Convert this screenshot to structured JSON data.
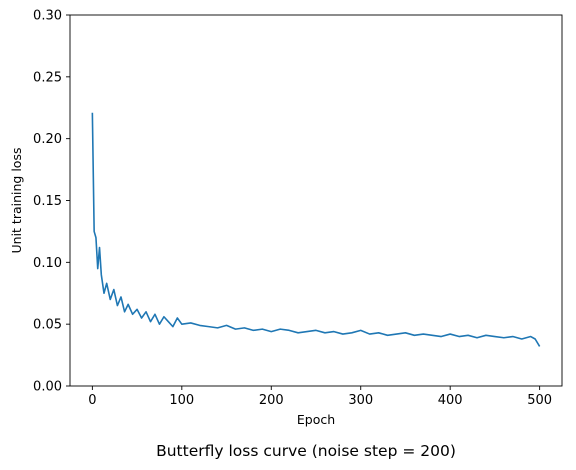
{
  "chart_data": {
    "type": "line",
    "title": "Butterfly loss curve (noise step = 200)",
    "xlabel": "Epoch",
    "ylabel": "Unit training loss",
    "xlim": [
      -25,
      525
    ],
    "ylim": [
      0,
      0.3
    ],
    "xticks": [
      0,
      100,
      200,
      300,
      400,
      500
    ],
    "xtick_labels": [
      "0",
      "100",
      "200",
      "300",
      "400",
      "500"
    ],
    "yticks": [
      0,
      0.05,
      0.1,
      0.15,
      0.2,
      0.25,
      0.3
    ],
    "ytick_labels": [
      "0.00",
      "0.05",
      "0.10",
      "0.15",
      "0.20",
      "0.25",
      "0.30"
    ],
    "grid": false,
    "legend": "none",
    "series": [
      {
        "color": "#1f77b4",
        "x": [
          0,
          2,
          4,
          6,
          8,
          10,
          13,
          16,
          20,
          24,
          28,
          32,
          36,
          40,
          45,
          50,
          55,
          60,
          65,
          70,
          75,
          80,
          85,
          90,
          95,
          100,
          110,
          120,
          130,
          140,
          150,
          160,
          170,
          180,
          190,
          200,
          210,
          220,
          230,
          240,
          250,
          260,
          270,
          280,
          290,
          300,
          310,
          320,
          330,
          340,
          350,
          360,
          370,
          380,
          390,
          400,
          410,
          420,
          430,
          440,
          450,
          460,
          470,
          480,
          490,
          495,
          500
        ],
        "y": [
          0.221,
          0.125,
          0.12,
          0.095,
          0.112,
          0.09,
          0.075,
          0.083,
          0.07,
          0.078,
          0.065,
          0.072,
          0.06,
          0.066,
          0.058,
          0.062,
          0.055,
          0.06,
          0.052,
          0.058,
          0.05,
          0.056,
          0.052,
          0.048,
          0.055,
          0.05,
          0.051,
          0.049,
          0.048,
          0.047,
          0.049,
          0.046,
          0.047,
          0.045,
          0.046,
          0.044,
          0.046,
          0.045,
          0.043,
          0.044,
          0.045,
          0.043,
          0.044,
          0.042,
          0.043,
          0.045,
          0.042,
          0.043,
          0.041,
          0.042,
          0.043,
          0.041,
          0.042,
          0.041,
          0.04,
          0.042,
          0.04,
          0.041,
          0.039,
          0.041,
          0.04,
          0.039,
          0.04,
          0.038,
          0.04,
          0.038,
          0.032
        ]
      }
    ]
  }
}
